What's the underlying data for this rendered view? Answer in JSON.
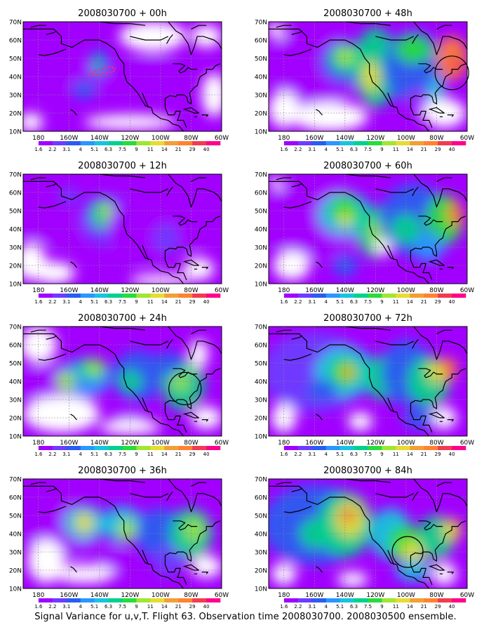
{
  "caption": "Signal Variance for u,v,T. Flight 63. Observation time 2008030700. 2008030500 ensemble.",
  "panels": [
    {
      "title": "2008030700 + 00h",
      "lead_h": 0
    },
    {
      "title": "2008030700 + 48h",
      "lead_h": 48
    },
    {
      "title": "2008030700 + 12h",
      "lead_h": 12
    },
    {
      "title": "2008030700 + 60h",
      "lead_h": 60
    },
    {
      "title": "2008030700 + 24h",
      "lead_h": 24
    },
    {
      "title": "2008030700 + 72h",
      "lead_h": 72
    },
    {
      "title": "2008030700 + 36h",
      "lead_h": 36
    },
    {
      "title": "2008030700 + 84h",
      "lead_h": 84
    }
  ],
  "map": {
    "lon_labels": [
      "180",
      "160W",
      "140W",
      "120W",
      "100W",
      "80W",
      "60W"
    ],
    "lat_labels": [
      "10N",
      "20N",
      "30N",
      "40N",
      "50N",
      "60N",
      "70N"
    ],
    "lon_range": [
      -190,
      -60
    ],
    "lat_range": [
      10,
      70
    ]
  },
  "colorbar": {
    "labels": [
      "1.6",
      "2.2",
      "3.1",
      "4",
      "5.1",
      "6.3",
      "7.5",
      "9",
      "11",
      "14",
      "21",
      "29",
      "40"
    ],
    "colors": [
      "#ffffff",
      "#a100ff",
      "#6e3cff",
      "#2a5cf0",
      "#2a96ff",
      "#19c3e0",
      "#00d28c",
      "#28dc3c",
      "#a0e632",
      "#e6dc32",
      "#f0a037",
      "#ff8232",
      "#f03c50",
      "#ff008c"
    ]
  }
}
